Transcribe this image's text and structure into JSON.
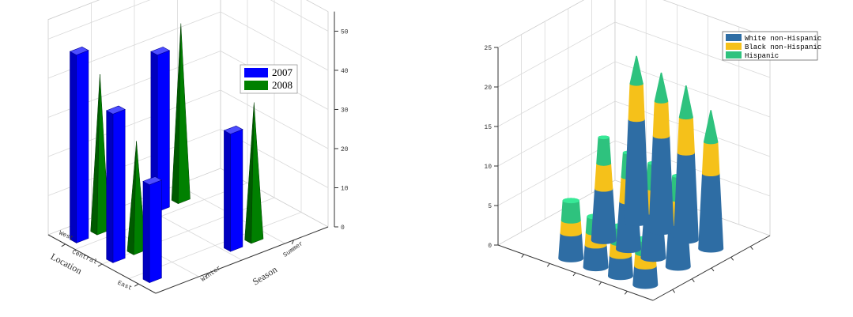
{
  "chart_data": [
    {
      "type": "bar",
      "subtype": "3d-bar-and-pyramid",
      "x_categories": [
        "Winter",
        "Summer"
      ],
      "y_categories": [
        "West",
        "Central",
        "East"
      ],
      "xlabel": "Season",
      "ylabel": "Location",
      "zlim": [
        0,
        55
      ],
      "zticks": [
        0,
        10,
        20,
        30,
        40,
        50
      ],
      "grid": true,
      "legend_position": "top-right",
      "series": [
        {
          "name": "2007",
          "shape": "bar",
          "color": "#0000ff",
          "points": [
            {
              "season": "Winter",
              "location": "West",
              "value": 48
            },
            {
              "season": "Winter",
              "location": "Central",
              "value": 38
            },
            {
              "season": "Winter",
              "location": "East",
              "value": 25
            },
            {
              "season": "Summer",
              "location": "West",
              "value": 40
            },
            {
              "season": "Summer",
              "location": "East",
              "value": 30
            }
          ]
        },
        {
          "name": "2008",
          "shape": "pyramid",
          "color": "#008000",
          "points": [
            {
              "season": "Winter",
              "location": "West",
              "value": 40
            },
            {
              "season": "Winter",
              "location": "Central",
              "value": 28
            },
            {
              "season": "Summer",
              "location": "West",
              "value": 45
            },
            {
              "season": "Summer",
              "location": "East",
              "value": 35
            }
          ]
        }
      ]
    },
    {
      "type": "bar",
      "subtype": "3d-stacked-cone",
      "zlim": [
        0,
        25
      ],
      "zticks": [
        0,
        5,
        10,
        15,
        20,
        25
      ],
      "grid": true,
      "legend_position": "top-right",
      "series": [
        {
          "name": "White non-Hispanic",
          "color": "#2e6da4"
        },
        {
          "name": "Black non-Hispanic",
          "color": "#f5c11a"
        },
        {
          "name": "Hispanic",
          "color": "#2ec27e"
        }
      ],
      "stacks": [
        {
          "col": 0,
          "row": 2,
          "values": [
            3.2,
            1.6,
            2.5
          ]
        },
        {
          "col": 0,
          "row": 3,
          "values": [
            2.8,
            1.6,
            2.0
          ]
        },
        {
          "col": 0,
          "row": 4,
          "values": [
            2.6,
            1.6,
            2.1
          ]
        },
        {
          "col": 0,
          "row": 5,
          "values": [
            2.4,
            1.6,
            1.8
          ]
        },
        {
          "col": 1,
          "row": 2,
          "values": [
            6.5,
            3.2,
            3.3
          ]
        },
        {
          "col": 1,
          "row": 3,
          "values": [
            6.0,
            3.1,
            3.1
          ]
        },
        {
          "col": 1,
          "row": 4,
          "values": [
            5.8,
            3.0,
            3.2
          ]
        },
        {
          "col": 1,
          "row": 5,
          "values": [
            5.5,
            3.0,
            3.0
          ]
        },
        {
          "col": 2,
          "row": 2,
          "values": [
            13.0,
            4.5,
            3.5
          ]
        },
        {
          "col": 2,
          "row": 3,
          "values": [
            12.0,
            4.4,
            3.6
          ]
        },
        {
          "col": 2,
          "row": 4,
          "values": [
            11.0,
            4.5,
            4.0
          ]
        },
        {
          "col": 2,
          "row": 5,
          "values": [
            9.5,
            4.0,
            4.0
          ]
        }
      ]
    }
  ],
  "legend_left": [
    "2007",
    "2008"
  ],
  "legend_right": [
    "White non-Hispanic",
    "Black non-Hispanic",
    "Hispanic"
  ]
}
